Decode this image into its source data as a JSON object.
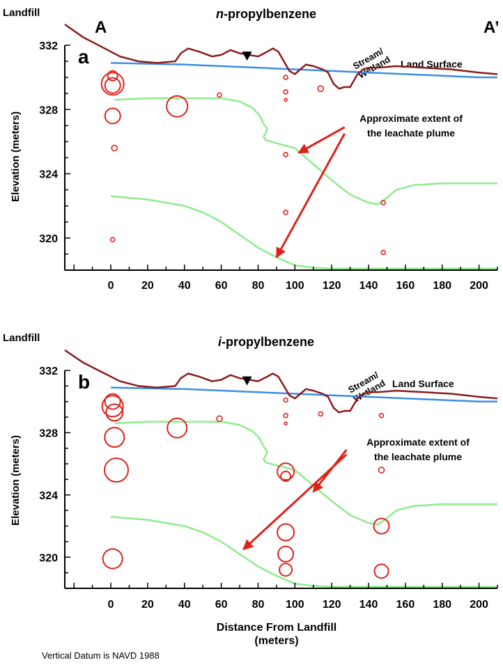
{
  "figure": {
    "xlabel_line1": "Distance From Landfill",
    "xlabel_line2": "(meters)",
    "footnote": "Vertical Datum is NAVD 1988",
    "colors": {
      "land_surface": "#8B1A1A",
      "water_table": "#3A8EE6",
      "plume": "#8EEB8E",
      "samples": "#E0201A",
      "arrows": "#E0201A",
      "axes": "#000000"
    }
  },
  "chart_data": [
    {
      "type": "scatter",
      "panel_letter": "a",
      "title": "n-propylbenzene",
      "title_prefix": "n",
      "title_suffix": "-propylbenzene",
      "corner_left": "Landfill",
      "label_A": "A",
      "label_A_prime": "A’",
      "ylabel": "Elevation (meters)",
      "xlabel": "Distance From Landfill (meters)",
      "xlim": [
        -25,
        210
      ],
      "ylim": [
        318,
        332
      ],
      "x_ticks": [
        "0",
        "20",
        "40",
        "60",
        "80",
        "100",
        "120",
        "140",
        "160",
        "180",
        "200"
      ],
      "y_ticks": [
        "332",
        "328",
        "324",
        "320"
      ],
      "grid": false,
      "annotations": {
        "stream_line1": "Stream/",
        "stream_line2": "Wetland",
        "land_surface": "Land Surface",
        "plume_line1": "Approximate extent of",
        "plume_line2": "the leachate plume"
      },
      "land_surface": {
        "x": [
          -25,
          -15,
          -5,
          5,
          15,
          25,
          35,
          38,
          42,
          48,
          55,
          60,
          65,
          70,
          75,
          80,
          85,
          88,
          91,
          94,
          97,
          100,
          103,
          106,
          110,
          115,
          118,
          121,
          124,
          127,
          130,
          134,
          137,
          140,
          145,
          155,
          170,
          185,
          200,
          210
        ],
        "y": [
          333.3,
          332.5,
          331.9,
          331.3,
          331.0,
          330.9,
          331.0,
          331.5,
          331.8,
          331.6,
          331.3,
          331.4,
          331.7,
          331.5,
          331.4,
          331.3,
          331.6,
          331.8,
          331.6,
          331.0,
          330.4,
          330.2,
          330.5,
          330.8,
          330.7,
          330.5,
          330.3,
          329.6,
          329.3,
          329.4,
          329.4,
          330.2,
          330.5,
          330.6,
          330.6,
          330.7,
          330.6,
          330.5,
          330.3,
          330.2
        ]
      },
      "water_table": {
        "x": [
          0,
          40,
          80,
          100,
          120,
          140,
          160,
          180,
          200,
          210
        ],
        "y": [
          330.9,
          330.8,
          330.6,
          330.5,
          330.4,
          330.3,
          330.2,
          330.1,
          330.0,
          330.0
        ]
      },
      "plume_upper": {
        "x": [
          2,
          20,
          40,
          60,
          70,
          77,
          81,
          83,
          85,
          84,
          83,
          84,
          90,
          100,
          110,
          120,
          130,
          140,
          145,
          150,
          155,
          165,
          180,
          200,
          210
        ],
        "y": [
          328.6,
          328.7,
          328.7,
          328.7,
          328.5,
          328.1,
          327.6,
          327.1,
          326.8,
          326.5,
          326.3,
          326.1,
          325.9,
          325.6,
          324.6,
          323.6,
          322.7,
          322.2,
          322.1,
          322.5,
          323.0,
          323.3,
          323.4,
          323.4,
          323.4
        ]
      },
      "plume_lower": {
        "x": [
          0,
          20,
          40,
          50,
          60,
          70,
          80,
          90,
          100,
          110,
          120,
          140,
          160,
          180,
          200,
          210
        ],
        "y": [
          322.6,
          322.4,
          322.0,
          321.6,
          321.0,
          320.2,
          319.4,
          318.8,
          318.3,
          318.15,
          318.1,
          318.1,
          318.1,
          318.1,
          318.1,
          318.1
        ]
      },
      "points": [
        {
          "x": 1,
          "y": 329.6,
          "r": 16
        },
        {
          "x": 1,
          "y": 329.5,
          "r": 11
        },
        {
          "x": 1,
          "y": 330.1,
          "r": 7
        },
        {
          "x": 1,
          "y": 327.6,
          "r": 11
        },
        {
          "x": 2,
          "y": 325.6,
          "r": 4
        },
        {
          "x": 1,
          "y": 319.9,
          "r": 3
        },
        {
          "x": 36,
          "y": 328.2,
          "r": 15
        },
        {
          "x": 59,
          "y": 328.9,
          "r": 3
        },
        {
          "x": 95,
          "y": 330.0,
          "r": 3
        },
        {
          "x": 95,
          "y": 329.1,
          "r": 3
        },
        {
          "x": 95,
          "y": 328.6,
          "r": 2
        },
        {
          "x": 95,
          "y": 325.2,
          "r": 3
        },
        {
          "x": 95,
          "y": 321.6,
          "r": 3
        },
        {
          "x": 114,
          "y": 329.3,
          "r": 4
        },
        {
          "x": 148,
          "y": 322.2,
          "r": 3
        },
        {
          "x": 148,
          "y": 319.1,
          "r": 3
        }
      ],
      "arrows": [
        {
          "from": [
            127,
            326.9
          ],
          "to": [
            102,
            325.3
          ]
        },
        {
          "from": [
            127,
            326.5
          ],
          "to": [
            90,
            318.8
          ]
        }
      ],
      "water_table_marker": {
        "x": 74,
        "y": 331.3
      }
    },
    {
      "type": "scatter",
      "panel_letter": "b",
      "title": "i-propylbenzene",
      "title_prefix": "i",
      "title_suffix": "-propylbenzene",
      "corner_left": "Landfill",
      "ylabel": "Elevation (meters)",
      "xlabel": "Distance From Landfill (meters)",
      "xlim": [
        -25,
        210
      ],
      "ylim": [
        318,
        332
      ],
      "x_ticks": [
        "0",
        "20",
        "40",
        "60",
        "80",
        "100",
        "120",
        "140",
        "160",
        "180",
        "200"
      ],
      "y_ticks": [
        "332",
        "328",
        "324",
        "320"
      ],
      "grid": false,
      "annotations": {
        "stream_line1": "Stream/",
        "stream_line2": "Wetland",
        "land_surface": "Land Surface",
        "plume_line1": "Approximate extent of",
        "plume_line2": "the leachate plume"
      },
      "land_surface": {
        "x": [
          -25,
          -15,
          -5,
          5,
          15,
          25,
          35,
          38,
          42,
          48,
          55,
          60,
          65,
          70,
          75,
          80,
          85,
          88,
          91,
          94,
          97,
          100,
          103,
          106,
          110,
          115,
          118,
          121,
          124,
          127,
          130,
          134,
          137,
          140,
          145,
          155,
          170,
          185,
          200,
          210
        ],
        "y": [
          333.3,
          332.5,
          331.9,
          331.3,
          331.0,
          330.9,
          331.0,
          331.5,
          331.8,
          331.6,
          331.3,
          331.4,
          331.7,
          331.5,
          331.4,
          331.3,
          331.6,
          331.8,
          331.6,
          331.0,
          330.4,
          330.2,
          330.5,
          330.8,
          330.7,
          330.5,
          330.3,
          329.6,
          329.3,
          329.4,
          329.4,
          330.2,
          330.5,
          330.6,
          330.6,
          330.7,
          330.6,
          330.5,
          330.3,
          330.2
        ]
      },
      "water_table": {
        "x": [
          0,
          40,
          80,
          100,
          120,
          140,
          160,
          180,
          200,
          210
        ],
        "y": [
          330.9,
          330.8,
          330.6,
          330.5,
          330.4,
          330.3,
          330.2,
          330.1,
          330.0,
          330.0
        ]
      },
      "plume_upper": {
        "x": [
          2,
          20,
          40,
          60,
          70,
          77,
          81,
          83,
          85,
          84,
          83,
          84,
          90,
          100,
          110,
          120,
          130,
          140,
          145,
          150,
          155,
          165,
          180,
          200,
          210
        ],
        "y": [
          328.6,
          328.7,
          328.7,
          328.7,
          328.5,
          328.1,
          327.6,
          327.1,
          326.8,
          326.5,
          326.3,
          326.1,
          325.9,
          325.6,
          324.6,
          323.6,
          322.7,
          322.2,
          322.1,
          322.5,
          323.0,
          323.3,
          323.4,
          323.4,
          323.4
        ]
      },
      "plume_lower": {
        "x": [
          0,
          20,
          40,
          50,
          60,
          70,
          80,
          90,
          100,
          110,
          120,
          140,
          160,
          180,
          200,
          210
        ],
        "y": [
          322.6,
          322.4,
          322.0,
          321.6,
          321.0,
          320.2,
          319.4,
          318.8,
          318.3,
          318.15,
          318.1,
          318.1,
          318.1,
          318.1,
          318.1,
          318.1
        ]
      },
      "points": [
        {
          "x": 1,
          "y": 329.7,
          "r": 15
        },
        {
          "x": 1,
          "y": 330.0,
          "r": 11
        },
        {
          "x": 2,
          "y": 329.3,
          "r": 12
        },
        {
          "x": 2,
          "y": 327.7,
          "r": 14
        },
        {
          "x": 3,
          "y": 325.6,
          "r": 17
        },
        {
          "x": 1,
          "y": 319.9,
          "r": 14
        },
        {
          "x": 36,
          "y": 328.3,
          "r": 14
        },
        {
          "x": 59,
          "y": 328.9,
          "r": 4
        },
        {
          "x": 95,
          "y": 330.1,
          "r": 3
        },
        {
          "x": 95,
          "y": 329.1,
          "r": 3
        },
        {
          "x": 95,
          "y": 328.6,
          "r": 2
        },
        {
          "x": 95,
          "y": 325.5,
          "r": 12
        },
        {
          "x": 95,
          "y": 325.2,
          "r": 7
        },
        {
          "x": 95,
          "y": 321.6,
          "r": 12
        },
        {
          "x": 95,
          "y": 320.2,
          "r": 11
        },
        {
          "x": 95,
          "y": 319.2,
          "r": 9
        },
        {
          "x": 114,
          "y": 329.2,
          "r": 3
        },
        {
          "x": 147,
          "y": 329.1,
          "r": 3
        },
        {
          "x": 147,
          "y": 325.6,
          "r": 4
        },
        {
          "x": 147,
          "y": 322.0,
          "r": 11
        },
        {
          "x": 147,
          "y": 319.1,
          "r": 10
        }
      ],
      "arrows": [
        {
          "from": [
            128,
            326.9
          ],
          "to": [
            110,
            324.2
          ]
        },
        {
          "from": [
            128,
            326.6
          ],
          "to": [
            72,
            320.5
          ]
        }
      ],
      "water_table_marker": {
        "x": 74,
        "y": 331.3
      }
    }
  ]
}
